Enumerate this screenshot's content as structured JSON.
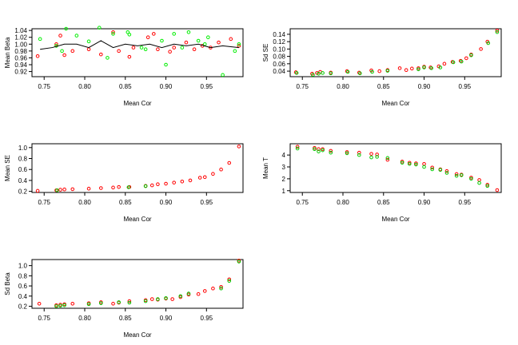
{
  "chart_data": [
    {
      "type": "scatter",
      "xlabel": "Mean Cor",
      "ylabel": "Mean Beta",
      "xlim": [
        0.735,
        0.995
      ],
      "ylim": [
        0.905,
        1.045
      ],
      "xticks": [
        0.75,
        0.8,
        0.85,
        0.9,
        0.95
      ],
      "xtick_labels": [
        "0.75",
        "0.80",
        "0.85",
        "0.90",
        "0.95"
      ],
      "yticks": [
        0.92,
        0.94,
        0.96,
        0.98,
        1.0,
        1.02,
        1.04
      ],
      "ytick_labels": [
        "0.92",
        "0.94",
        "0.96",
        "0.98",
        "1.00",
        "1.02",
        "1.04"
      ],
      "series": [
        {
          "color": "#ff0000",
          "x": [
            0.742,
            0.765,
            0.77,
            0.775,
            0.785,
            0.805,
            0.82,
            0.835,
            0.842,
            0.855,
            0.86,
            0.878,
            0.885,
            0.89,
            0.905,
            0.91,
            0.925,
            0.935,
            0.945,
            0.955,
            0.965,
            0.98,
            0.99
          ],
          "y": [
            0.965,
            1.0,
            1.025,
            0.968,
            0.98,
            0.985,
            0.97,
            1.035,
            0.98,
            0.963,
            0.99,
            1.02,
            1.03,
            0.985,
            0.978,
            0.99,
            1.005,
            0.985,
            0.995,
            0.99,
            1.005,
            1.015,
            0.995
          ]
        },
        {
          "color": "#00ee00",
          "x": [
            0.745,
            0.765,
            0.772,
            0.777,
            0.79,
            0.805,
            0.818,
            0.828,
            0.835,
            0.853,
            0.855,
            0.87,
            0.875,
            0.895,
            0.9,
            0.91,
            0.92,
            0.928,
            0.94,
            0.948,
            0.952,
            0.97,
            0.985,
            0.99
          ],
          "y": [
            1.015,
            0.995,
            0.98,
            1.045,
            1.025,
            1.008,
            1.048,
            0.96,
            1.03,
            1.035,
            1.028,
            0.99,
            0.985,
            1.01,
            0.94,
            1.03,
            0.99,
            1.035,
            1.01,
            1.0,
            1.02,
            0.91,
            0.98,
            1.0
          ]
        }
      ],
      "line": {
        "color": "#000000",
        "x": [
          0.745,
          0.76,
          0.775,
          0.79,
          0.805,
          0.82,
          0.835,
          0.85,
          0.865,
          0.88,
          0.895,
          0.91,
          0.925,
          0.94,
          0.955,
          0.97,
          0.99
        ],
        "y": [
          0.985,
          0.99,
          1.0,
          1.0,
          0.99,
          1.01,
          0.99,
          1.0,
          0.995,
          1.0,
          0.99,
          1.0,
          0.995,
          1.0,
          0.99,
          0.995,
          0.99
        ]
      }
    },
    {
      "type": "scatter",
      "xlabel": "Mean Cor",
      "ylabel": "Sd SE",
      "xlim": [
        0.735,
        0.995
      ],
      "ylim": [
        0.025,
        0.155
      ],
      "xticks": [
        0.75,
        0.8,
        0.85,
        0.9,
        0.95
      ],
      "xtick_labels": [
        "0.75",
        "0.80",
        "0.85",
        "0.90",
        "0.95"
      ],
      "yticks": [
        0.04,
        0.06,
        0.08,
        0.1,
        0.12,
        0.14
      ],
      "ytick_labels": [
        "0.04",
        "0.06",
        "0.08",
        "0.10",
        "0.12",
        "0.14"
      ],
      "series": [
        {
          "color": "#ff0000",
          "x": [
            0.742,
            0.762,
            0.768,
            0.772,
            0.785,
            0.805,
            0.82,
            0.835,
            0.845,
            0.855,
            0.87,
            0.878,
            0.885,
            0.893,
            0.9,
            0.908,
            0.918,
            0.925,
            0.935,
            0.945,
            0.952,
            0.958,
            0.97,
            0.978,
            0.99
          ],
          "y": [
            0.037,
            0.033,
            0.035,
            0.038,
            0.036,
            0.04,
            0.036,
            0.042,
            0.04,
            0.043,
            0.048,
            0.043,
            0.047,
            0.048,
            0.052,
            0.05,
            0.053,
            0.06,
            0.065,
            0.068,
            0.075,
            0.085,
            0.1,
            0.12,
            0.15
          ]
        },
        {
          "color": "#00cc00",
          "x": [
            0.743,
            0.763,
            0.77,
            0.775,
            0.785,
            0.806,
            0.821,
            0.836,
            0.855,
            0.893,
            0.9,
            0.909,
            0.92,
            0.936,
            0.946,
            0.958,
            0.979,
            0.99
          ],
          "y": [
            0.035,
            0.03,
            0.033,
            0.035,
            0.034,
            0.038,
            0.034,
            0.038,
            0.041,
            0.045,
            0.05,
            0.048,
            0.05,
            0.064,
            0.066,
            0.083,
            0.116,
            0.146
          ]
        }
      ]
    },
    {
      "type": "scatter",
      "xlabel": "Mean Cor",
      "ylabel": "Mean SE",
      "xlim": [
        0.735,
        0.995
      ],
      "ylim": [
        0.18,
        1.07
      ],
      "xticks": [
        0.75,
        0.8,
        0.85,
        0.9,
        0.95
      ],
      "xtick_labels": [
        "0.75",
        "0.80",
        "0.85",
        "0.90",
        "0.95"
      ],
      "yticks": [
        0.2,
        0.4,
        0.6,
        0.8,
        1.0
      ],
      "ytick_labels": [
        "0.2",
        "0.4",
        "0.6",
        "0.8",
        "1.0"
      ],
      "series": [
        {
          "color": "#ff0000",
          "x": [
            0.742,
            0.765,
            0.77,
            0.775,
            0.785,
            0.805,
            0.82,
            0.835,
            0.842,
            0.855,
            0.875,
            0.883,
            0.89,
            0.9,
            0.91,
            0.92,
            0.93,
            0.942,
            0.948,
            0.958,
            0.968,
            0.978,
            0.99
          ],
          "y": [
            0.21,
            0.22,
            0.23,
            0.235,
            0.24,
            0.25,
            0.26,
            0.27,
            0.28,
            0.28,
            0.3,
            0.31,
            0.33,
            0.34,
            0.36,
            0.38,
            0.4,
            0.45,
            0.46,
            0.52,
            0.6,
            0.72,
            1.02
          ]
        },
        {
          "color": "#00cc00",
          "x": [
            0.766,
            0.854,
            0.875
          ],
          "y": [
            0.22,
            0.275,
            0.295
          ]
        }
      ]
    },
    {
      "type": "scatter",
      "xlabel": "Mean Cor",
      "ylabel": "Mean T",
      "xlim": [
        0.735,
        0.995
      ],
      "ylim": [
        0.85,
        4.95
      ],
      "xticks": [
        0.75,
        0.8,
        0.85,
        0.9,
        0.95
      ],
      "xtick_labels": [
        "0.75",
        "0.80",
        "0.85",
        "0.90",
        "0.95"
      ],
      "yticks": [
        1,
        2,
        3,
        4
      ],
      "ytick_labels": [
        "1",
        "2",
        "3",
        "4"
      ],
      "series": [
        {
          "color": "#ff0000",
          "x": [
            0.744,
            0.765,
            0.77,
            0.775,
            0.785,
            0.805,
            0.82,
            0.835,
            0.842,
            0.855,
            0.873,
            0.882,
            0.89,
            0.9,
            0.91,
            0.92,
            0.928,
            0.94,
            0.946,
            0.958,
            0.968,
            0.978,
            0.99
          ],
          "y": [
            4.7,
            4.6,
            4.5,
            4.5,
            4.35,
            4.25,
            4.2,
            4.1,
            4.05,
            3.6,
            3.45,
            3.35,
            3.3,
            3.25,
            2.95,
            2.8,
            2.65,
            2.4,
            2.35,
            2.1,
            1.9,
            1.5,
            1.05
          ]
        },
        {
          "color": "#00cc00",
          "x": [
            0.744,
            0.765,
            0.77,
            0.775,
            0.785,
            0.805,
            0.82,
            0.835,
            0.842,
            0.855,
            0.873,
            0.882,
            0.89,
            0.9,
            0.91,
            0.92,
            0.928,
            0.94,
            0.946,
            0.958,
            0.968,
            0.978
          ],
          "y": [
            4.55,
            4.5,
            4.3,
            4.4,
            4.2,
            4.15,
            4.0,
            3.8,
            3.85,
            3.75,
            3.35,
            3.25,
            3.2,
            3.0,
            2.8,
            2.75,
            2.5,
            2.25,
            2.3,
            2.0,
            1.65,
            1.4
          ]
        }
      ]
    },
    {
      "type": "scatter",
      "xlabel": "Mean Cor",
      "ylabel": "Sd Beta",
      "xlim": [
        0.735,
        0.995
      ],
      "ylim": [
        0.16,
        1.12
      ],
      "xticks": [
        0.75,
        0.8,
        0.85,
        0.9,
        0.95
      ],
      "xtick_labels": [
        "0.75",
        "0.80",
        "0.85",
        "0.90",
        "0.95"
      ],
      "yticks": [
        0.2,
        0.4,
        0.6,
        0.8,
        1.0
      ],
      "ytick_labels": [
        "0.2",
        "0.4",
        "0.6",
        "0.8",
        "1.0"
      ],
      "series": [
        {
          "color": "#ff0000",
          "x": [
            0.744,
            0.765,
            0.77,
            0.775,
            0.785,
            0.805,
            0.82,
            0.835,
            0.842,
            0.855,
            0.875,
            0.883,
            0.89,
            0.9,
            0.908,
            0.918,
            0.928,
            0.94,
            0.948,
            0.958,
            0.968,
            0.978,
            0.99
          ],
          "y": [
            0.25,
            0.22,
            0.23,
            0.24,
            0.25,
            0.26,
            0.28,
            0.25,
            0.27,
            0.3,
            0.32,
            0.34,
            0.33,
            0.35,
            0.34,
            0.38,
            0.43,
            0.44,
            0.5,
            0.55,
            0.58,
            0.73,
            1.1
          ]
        },
        {
          "color": "#00cc00",
          "x": [
            0.765,
            0.77,
            0.775,
            0.805,
            0.82,
            0.842,
            0.855,
            0.875,
            0.89,
            0.9,
            0.918,
            0.928,
            0.968,
            0.978,
            0.99
          ],
          "y": [
            0.2,
            0.21,
            0.22,
            0.24,
            0.26,
            0.28,
            0.27,
            0.3,
            0.34,
            0.36,
            0.4,
            0.45,
            0.55,
            0.7,
            1.08
          ]
        }
      ]
    }
  ]
}
